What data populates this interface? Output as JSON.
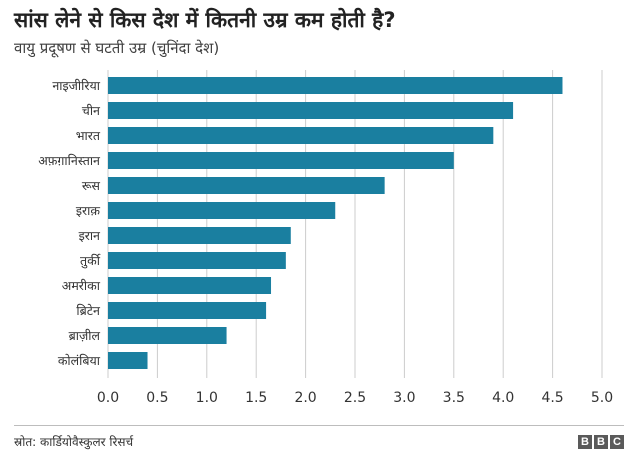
{
  "title": "सांस लेने से किस देश में कितनी उम्र कम होती है?",
  "subtitle": "वायु प्रदूषण से घटती उम्र (चुनिंदा देश)",
  "source": "स्रोत: कार्डियोवैस्कुलर रिसर्च",
  "logo": [
    "B",
    "B",
    "C"
  ],
  "chart_data": {
    "type": "bar",
    "orientation": "horizontal",
    "categories": [
      "नाइजीरिया",
      "चीन",
      "भारत",
      "अफ़ग़ानिस्तान",
      "रूस",
      "इराक़",
      "इरान",
      "तुर्की",
      "अमरीका",
      "ब्रिटेन",
      "ब्राज़ील",
      "कोलंबिया"
    ],
    "values": [
      4.6,
      4.1,
      3.9,
      3.5,
      2.8,
      2.3,
      1.85,
      1.8,
      1.65,
      1.6,
      1.2,
      0.4
    ],
    "xlim": [
      0,
      5
    ],
    "xticks": [
      "0.0",
      "0.5",
      "1.0",
      "1.5",
      "2.0",
      "2.5",
      "3.0",
      "3.5",
      "4.0",
      "4.5",
      "5.0"
    ],
    "grid": true,
    "bar_color": "#1a7fa0",
    "grid_color": "#cccccc"
  }
}
